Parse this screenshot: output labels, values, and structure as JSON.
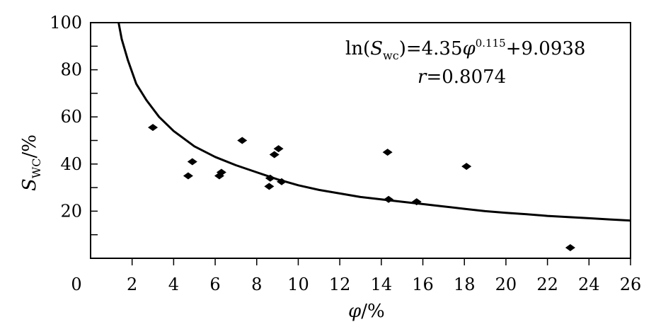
{
  "chart_data": {
    "type": "scatter",
    "xlabel": {
      "symbol": "φ",
      "unit": "/%"
    },
    "ylabel": {
      "symbol": "S",
      "subscript": "WC",
      "unit": "/%"
    },
    "xlim": [
      0,
      26
    ],
    "ylim": [
      0,
      100
    ],
    "x_ticks": [
      0,
      2,
      4,
      6,
      8,
      10,
      12,
      14,
      16,
      18,
      20,
      22,
      24,
      26
    ],
    "y_ticks_labeled": [
      20,
      40,
      60,
      80,
      100
    ],
    "y_ticks_minor": [
      10,
      30,
      50,
      70,
      90
    ],
    "y_origin_label": "0",
    "grid": false,
    "points": [
      {
        "x": 3.0,
        "y": 55.5
      },
      {
        "x": 4.7,
        "y": 35.0
      },
      {
        "x": 4.9,
        "y": 41.0
      },
      {
        "x": 6.2,
        "y": 35.0
      },
      {
        "x": 6.3,
        "y": 36.5
      },
      {
        "x": 7.3,
        "y": 50.0
      },
      {
        "x": 8.6,
        "y": 30.5
      },
      {
        "x": 8.65,
        "y": 34.0
      },
      {
        "x": 8.85,
        "y": 44.0
      },
      {
        "x": 9.05,
        "y": 46.5
      },
      {
        "x": 9.2,
        "y": 32.5
      },
      {
        "x": 14.3,
        "y": 45.0
      },
      {
        "x": 14.35,
        "y": 25.0
      },
      {
        "x": 15.7,
        "y": 24.0
      },
      {
        "x": 18.1,
        "y": 39.0
      },
      {
        "x": 23.1,
        "y": 4.5
      }
    ],
    "fit_curve": [
      {
        "x": 1.35,
        "y": 100
      },
      {
        "x": 1.5,
        "y": 93
      },
      {
        "x": 1.8,
        "y": 84
      },
      {
        "x": 2.2,
        "y": 74
      },
      {
        "x": 2.7,
        "y": 67
      },
      {
        "x": 3.3,
        "y": 60
      },
      {
        "x": 4.0,
        "y": 54
      },
      {
        "x": 5.0,
        "y": 47.5
      },
      {
        "x": 6.0,
        "y": 43
      },
      {
        "x": 7.0,
        "y": 39.5
      },
      {
        "x": 8.0,
        "y": 36.5
      },
      {
        "x": 9.0,
        "y": 33.5
      },
      {
        "x": 10.0,
        "y": 31
      },
      {
        "x": 11.0,
        "y": 29
      },
      {
        "x": 12.0,
        "y": 27.5
      },
      {
        "x": 13.0,
        "y": 26
      },
      {
        "x": 14.0,
        "y": 25
      },
      {
        "x": 15.0,
        "y": 24
      },
      {
        "x": 16.0,
        "y": 23
      },
      {
        "x": 17.0,
        "y": 22
      },
      {
        "x": 18.0,
        "y": 21
      },
      {
        "x": 19.0,
        "y": 20
      },
      {
        "x": 20.0,
        "y": 19.3
      },
      {
        "x": 21.0,
        "y": 18.7
      },
      {
        "x": 22.0,
        "y": 18
      },
      {
        "x": 23.0,
        "y": 17.5
      },
      {
        "x": 24.0,
        "y": 17
      },
      {
        "x": 25.0,
        "y": 16.5
      },
      {
        "x": 26.0,
        "y": 16
      }
    ],
    "equation": {
      "prefix": "ln(",
      "var": "S",
      "var_sub": "wc",
      "mid": ")=4.35",
      "phi": "φ",
      "exponent": "0.115",
      "suffix": "+9.0938"
    },
    "correlation": {
      "var": "r",
      "text": "=0.8074"
    }
  }
}
